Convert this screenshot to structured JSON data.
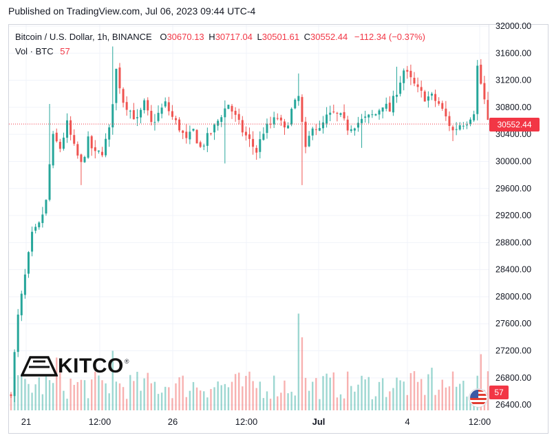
{
  "header": {
    "published": "Published on TradingView.com, Jul 06, 2023 09:44 UTC-4"
  },
  "legend": {
    "symbol": "Bitcoin / U.S. Dollar, 1h, BINANCE",
    "o_label": "O",
    "o": "30670.13",
    "h_label": "H",
    "h": "30717.04",
    "l_label": "L",
    "l": "30501.61",
    "c_label": "C",
    "c": "30552.44",
    "change": "−112.34 (−0.37%)",
    "vol_label": "Vol · BTC",
    "vol_value": "57"
  },
  "watermark": {
    "text": "KITCO",
    "reg": "®"
  },
  "badges": {
    "last_price": "30552.44",
    "last_volume": "57",
    "flag_icon": "us-flag-icon"
  },
  "colors": {
    "up": "#26a69a",
    "down": "#ef5350",
    "last_line": "#f23645",
    "grid": "#f0f3fa"
  },
  "chart_data": {
    "type": "candlestick",
    "symbol": "BTCUSD",
    "interval": "1h",
    "y_ticks": [
      26400,
      26800,
      27200,
      27600,
      28000,
      28400,
      28800,
      29200,
      29600,
      30000,
      30400,
      30800,
      31200,
      31600,
      32000
    ],
    "ylim": [
      26320,
      32020
    ],
    "x_ticks": [
      "21",
      "12:00",
      "26",
      "12:00",
      "Jul",
      "4",
      "12:00"
    ],
    "last_price": 30552.44,
    "close_path": [
      [
        0,
        26600
      ],
      [
        2,
        27700
      ],
      [
        4,
        28300
      ],
      [
        6,
        28900
      ],
      [
        8,
        29050
      ],
      [
        10,
        29400
      ],
      [
        11,
        29950
      ],
      [
        12,
        30350
      ],
      [
        14,
        30200
      ],
      [
        16,
        30550
      ],
      [
        18,
        30200
      ],
      [
        20,
        29950
      ],
      [
        22,
        30300
      ],
      [
        24,
        30100
      ],
      [
        26,
        30150
      ],
      [
        28,
        30450
      ],
      [
        30,
        31350
      ],
      [
        32,
        30900
      ],
      [
        34,
        30750
      ],
      [
        36,
        30600
      ],
      [
        38,
        30850
      ],
      [
        40,
        30550
      ],
      [
        42,
        30700
      ],
      [
        44,
        30850
      ],
      [
        46,
        30650
      ],
      [
        48,
        30500
      ],
      [
        50,
        30300
      ],
      [
        52,
        30450
      ],
      [
        54,
        30200
      ],
      [
        56,
        30350
      ],
      [
        58,
        30500
      ],
      [
        60,
        30700
      ],
      [
        62,
        30850
      ],
      [
        64,
        30650
      ],
      [
        66,
        30450
      ],
      [
        68,
        30300
      ],
      [
        70,
        30150
      ],
      [
        72,
        30450
      ],
      [
        74,
        30550
      ],
      [
        76,
        30650
      ],
      [
        78,
        30450
      ],
      [
        80,
        30750
      ],
      [
        82,
        30950
      ],
      [
        84,
        30150
      ],
      [
        86,
        30550
      ],
      [
        88,
        30450
      ],
      [
        90,
        30650
      ],
      [
        92,
        30700
      ],
      [
        94,
        30650
      ],
      [
        96,
        30500
      ],
      [
        98,
        30550
      ],
      [
        100,
        30600
      ],
      [
        102,
        30650
      ],
      [
        104,
        30700
      ],
      [
        106,
        30850
      ],
      [
        108,
        30750
      ],
      [
        110,
        31050
      ],
      [
        112,
        31350
      ],
      [
        114,
        31200
      ],
      [
        116,
        31050
      ],
      [
        118,
        30950
      ],
      [
        120,
        30950
      ],
      [
        122,
        30850
      ],
      [
        124,
        30650
      ],
      [
        126,
        30450
      ],
      [
        128,
        30550
      ],
      [
        130,
        30600
      ],
      [
        132,
        30750
      ],
      [
        133,
        31400
      ],
      [
        135,
        30900
      ],
      [
        136,
        30550
      ]
    ],
    "volume_spikes": [
      [
        13,
        27100
      ],
      [
        29,
        27200
      ],
      [
        82,
        27750
      ],
      [
        83,
        27400
      ],
      [
        134,
        27150
      ],
      [
        120,
        26950
      ]
    ]
  }
}
